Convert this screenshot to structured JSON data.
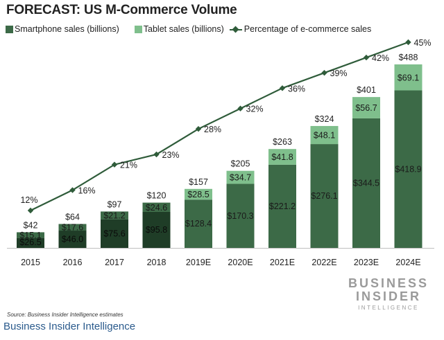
{
  "title": "FORECAST: US M-Commerce Volume",
  "legend": {
    "smartphone": "Smartphone sales (billions)",
    "tablet": "Tablet sales (billions)",
    "percentage": "Percentage of e-commerce sales"
  },
  "colors": {
    "smartphone": "#3c6a47",
    "tablet": "#7fbf8c",
    "line": "#2f5c3a",
    "dark_early": "#1f3d27"
  },
  "chart_data": {
    "type": "bar",
    "stacked": true,
    "title": "FORECAST: US M-Commerce Volume",
    "categories": [
      "2015",
      "2016",
      "2017",
      "2018",
      "2019E",
      "2020E",
      "2021E",
      "2022E",
      "2023E",
      "2024E"
    ],
    "series": [
      {
        "name": "Smartphone sales (billions)",
        "values": [
          26.5,
          46.0,
          75.6,
          95.8,
          128.4,
          170.3,
          221.2,
          276.1,
          344.5,
          418.9
        ],
        "labels": [
          "$26.5",
          "$46.0",
          "$75.6",
          "$95.8",
          "$128.4",
          "$170.3",
          "$221.2",
          "$276.1",
          "$344.5",
          "$418.9"
        ]
      },
      {
        "name": "Tablet sales (billions)",
        "values": [
          15.1,
          17.6,
          21.2,
          24.6,
          28.5,
          34.7,
          41.8,
          48.1,
          56.7,
          69.1
        ],
        "labels": [
          "$15.1",
          "$17.6",
          "$21.2",
          "$24.6",
          "$28.5",
          "$34.7",
          "$41.8",
          "$48.1",
          "$56.7",
          "$69.1"
        ]
      }
    ],
    "totals": [
      "$42",
      "$64",
      "$97",
      "$120",
      "$157",
      "$205",
      "$263",
      "$324",
      "$401",
      "$488"
    ],
    "total_values": [
      42,
      64,
      97,
      120,
      157,
      205,
      263,
      324,
      401,
      488
    ],
    "percentage_series": {
      "name": "Percentage of e-commerce sales",
      "values": [
        12,
        16,
        21,
        23,
        28,
        32,
        36,
        39,
        42,
        45
      ],
      "labels": [
        "12%",
        "16%",
        "21%",
        "23%",
        "28%",
        "32%",
        "36%",
        "39%",
        "42%",
        "45%"
      ]
    },
    "ylim": [
      0,
      488
    ],
    "pct_ylim": [
      0,
      45
    ]
  },
  "logo": {
    "line1": "BUSINESS",
    "line2": "INSIDER",
    "line3": "INTELLIGENCE"
  },
  "source": "Source: Business Insider Intelligence estimates",
  "brand": "Business Insider Intelligence"
}
